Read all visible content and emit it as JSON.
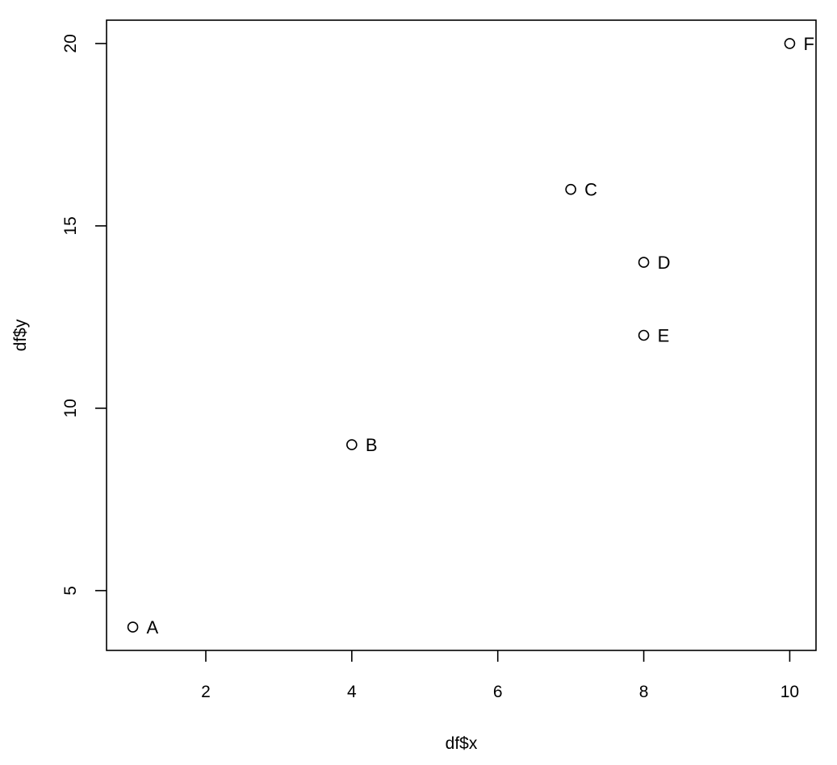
{
  "chart_data": {
    "type": "scatter",
    "title": "",
    "xlabel": "df$x",
    "ylabel": "df$y",
    "xlim": [
      0.64,
      10.36
    ],
    "ylim": [
      3.36,
      20.64
    ],
    "xticks": [
      2,
      4,
      6,
      8,
      10
    ],
    "yticks": [
      5,
      10,
      15,
      20
    ],
    "grid": false,
    "legend": "none",
    "point_marker": "open-circle",
    "colors": {
      "points": "#000000",
      "axes": "#000000",
      "background": "#ffffff"
    },
    "points": [
      {
        "label": "A",
        "x": 1,
        "y": 4
      },
      {
        "label": "B",
        "x": 4,
        "y": 9
      },
      {
        "label": "C",
        "x": 7,
        "y": 16
      },
      {
        "label": "D",
        "x": 8,
        "y": 14
      },
      {
        "label": "E",
        "x": 8,
        "y": 12
      },
      {
        "label": "F",
        "x": 10,
        "y": 20
      }
    ]
  }
}
